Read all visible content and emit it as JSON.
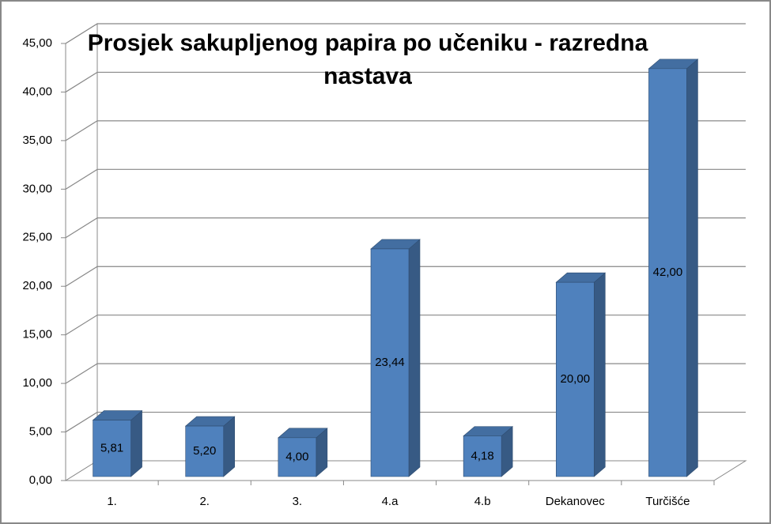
{
  "chart_data": {
    "type": "bar3d",
    "title": "Prosjek sakupljenog papira po učeniku - razredna nastava",
    "categories": [
      "1.",
      "2.",
      "3.",
      "4.a",
      "4.b",
      "Dekanovec",
      "Turčišće"
    ],
    "values": [
      5.81,
      5.2,
      4.0,
      23.44,
      4.18,
      20.0,
      42.0
    ],
    "value_labels": [
      "5,81",
      "5,20",
      "4,00",
      "23,44",
      "4,18",
      "20,00",
      "42,00"
    ],
    "color": "#4f81bd",
    "ylim": [
      0,
      45
    ],
    "yticks": [
      {
        "value": 0,
        "label": "0,00"
      },
      {
        "value": 5,
        "label": "5,00"
      },
      {
        "value": 10,
        "label": "10,00"
      },
      {
        "value": 15,
        "label": "15,00"
      },
      {
        "value": 20,
        "label": "20,00"
      },
      {
        "value": 25,
        "label": "25,00"
      },
      {
        "value": 30,
        "label": "30,00"
      },
      {
        "value": 35,
        "label": "35,00"
      },
      {
        "value": 40,
        "label": "40,00"
      },
      {
        "value": 45,
        "label": "45,00"
      }
    ],
    "grid": true
  }
}
